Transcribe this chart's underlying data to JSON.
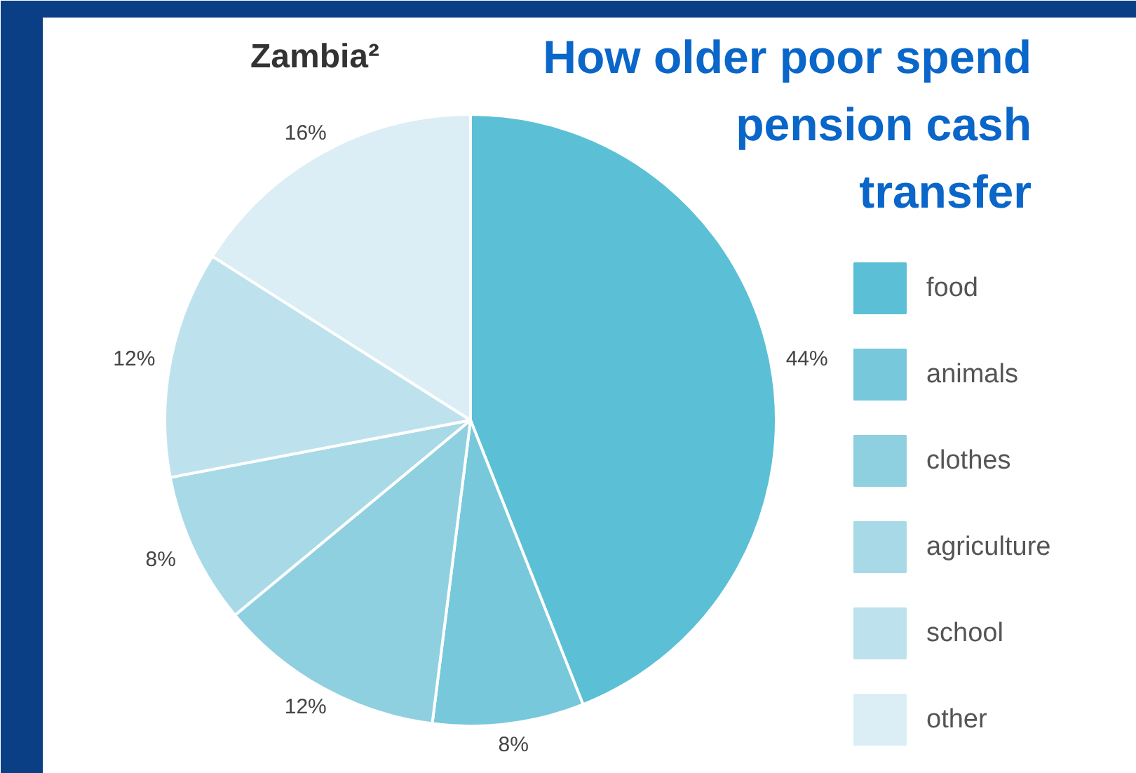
{
  "chart_data": {
    "type": "pie",
    "title": "Zambia²",
    "subtitle": "How older poor spend pension cash transfer",
    "categories": [
      "food",
      "animals",
      "clothes",
      "agriculture",
      "school",
      "other"
    ],
    "values": [
      44,
      8,
      12,
      8,
      12,
      16
    ],
    "colors": [
      "#5bc0d5",
      "#77c8db",
      "#8fd0e0",
      "#a8d9e7",
      "#bee2ed",
      "#dbeef5"
    ],
    "value_labels": [
      "44%",
      "8%",
      "12%",
      "8%",
      "12%",
      "16%"
    ],
    "legend": "right"
  }
}
